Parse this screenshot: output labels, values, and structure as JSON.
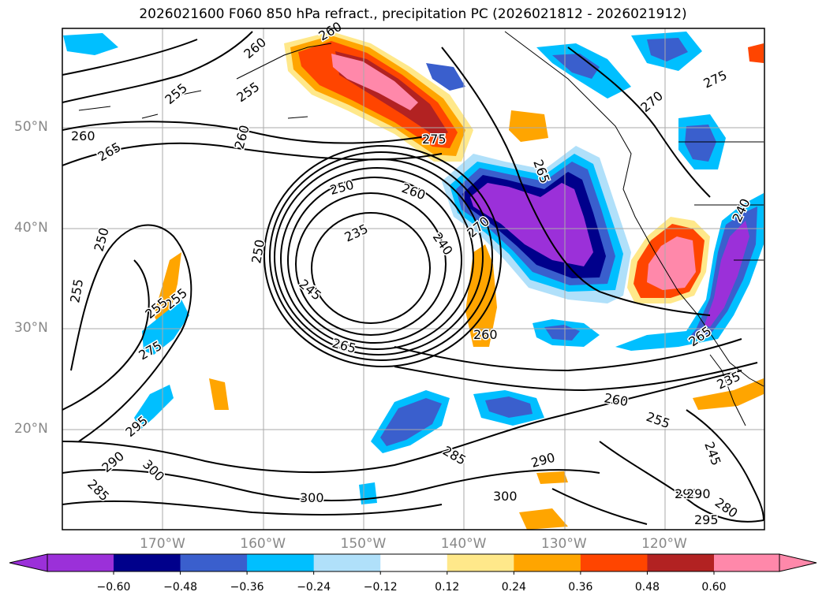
{
  "title": "2026021600 F060 850 hPa refract., precipitation PC (2026021812 - 2026021912)",
  "map": {
    "lat_labels": [
      {
        "text": "50°N",
        "lat": 50
      },
      {
        "text": "40°N",
        "lat": 40
      },
      {
        "text": "30°N",
        "lat": 30
      },
      {
        "text": "20°N",
        "lat": 20
      }
    ],
    "lon_labels": [
      {
        "text": "170°W",
        "lon": -170
      },
      {
        "text": "160°W",
        "lon": -160
      },
      {
        "text": "150°W",
        "lon": -150
      },
      {
        "text": "140°W",
        "lon": -140
      },
      {
        "text": "130°W",
        "lon": -130
      },
      {
        "text": "120°W",
        "lon": -120
      }
    ],
    "contour_labels": [
      "260",
      "260",
      "255",
      "255",
      "260",
      "260",
      "265",
      "250",
      "275",
      "250",
      "260",
      "235",
      "240",
      "245",
      "270",
      "265",
      "270",
      "275",
      "250",
      "255",
      "275",
      "255",
      "260",
      "255",
      "265",
      "295",
      "300",
      "290",
      "285",
      "285",
      "290",
      "300",
      "300",
      "265",
      "260",
      "255",
      "235",
      "245",
      "240",
      "290",
      "290",
      "280",
      "295"
    ]
  },
  "colorbar": {
    "ticks": [
      "−0.60",
      "−0.48",
      "−0.36",
      "−0.24",
      "−0.12",
      "0.12",
      "0.24",
      "0.36",
      "0.48",
      "0.60"
    ],
    "colors": [
      "#9b30d9",
      "#00008b",
      "#3a5fcd",
      "#00bfff",
      "#b0e0fa",
      "#ffffff",
      "#ffe88a",
      "#ffa500",
      "#ff4500",
      "#b22222",
      "#ff88aa"
    ]
  }
}
